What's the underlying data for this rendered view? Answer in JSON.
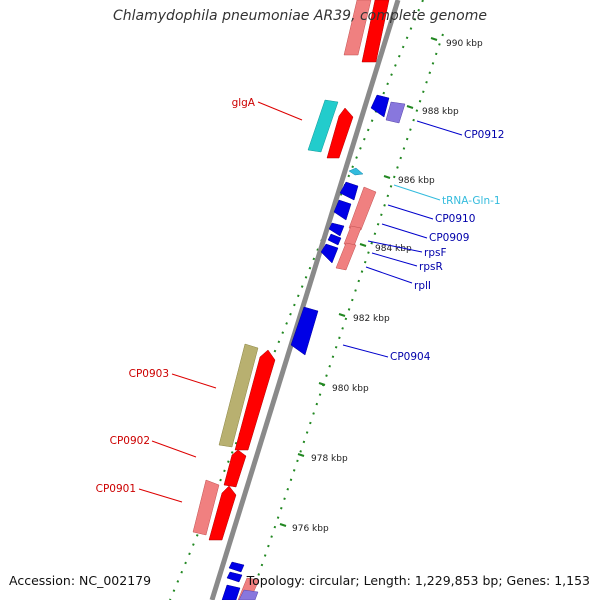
{
  "title": "Chlamydophila pneumoniae AR39, complete genome",
  "footer": {
    "accession": "Accession: NC_002179",
    "summary": "Topology: circular; Length: 1,229,853 bp; Genes: 1,153"
  },
  "scale_ticks": [
    "976 kbp",
    "978 kbp",
    "980 kbp",
    "982 kbp",
    "984 kbp",
    "986 kbp",
    "988 kbp",
    "990 kbp"
  ],
  "gene_labels_left": [
    "glgA",
    "CP0903",
    "CP0902",
    "CP0901"
  ],
  "gene_labels_right": [
    "CP0912",
    "tRNA-Gln-1",
    "CP0910",
    "CP0909",
    "rpsF",
    "rpsR",
    "rplI",
    "CP0904"
  ],
  "colors": {
    "forward_cds": "#ff0000",
    "forward_cds_light": "#f08080",
    "reverse_cds": "#0000e6",
    "reverse_cds_light": "#8877dd",
    "trna": "#33bbdd",
    "cyan_gene": "#22cccc",
    "olive_gene": "#b8b070",
    "axis": "#888888",
    "dots": "#228822"
  }
}
